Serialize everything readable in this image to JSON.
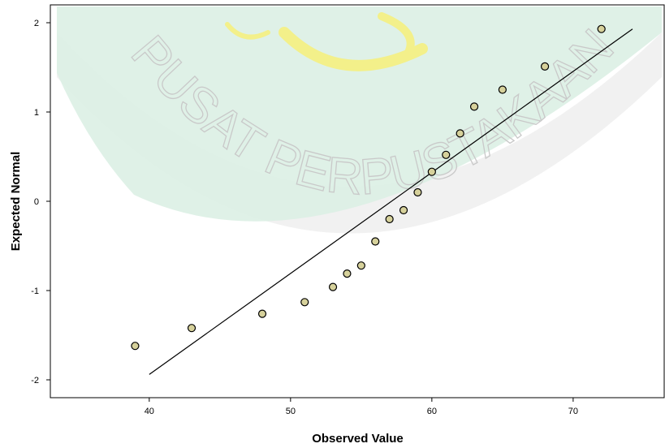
{
  "chart_data": {
    "type": "scatter",
    "title": "",
    "xlabel": "Observed Value",
    "ylabel": "Expected Normal",
    "xlim": [
      33,
      76.5
    ],
    "ylim": [
      -2.2,
      2.2
    ],
    "xticks": [
      40,
      50,
      60,
      70
    ],
    "yticks": [
      -2,
      -1,
      0,
      1,
      2
    ],
    "xtick_labels": [
      "40",
      "50",
      "60",
      "70"
    ],
    "ytick_labels": [
      "-2",
      "-1",
      "0",
      "1",
      "2"
    ],
    "grid": false,
    "points": [
      {
        "x": 39,
        "y": -1.62
      },
      {
        "x": 43,
        "y": -1.42
      },
      {
        "x": 48,
        "y": -1.26
      },
      {
        "x": 51,
        "y": -1.13
      },
      {
        "x": 53,
        "y": -0.96
      },
      {
        "x": 54,
        "y": -0.81
      },
      {
        "x": 55,
        "y": -0.72
      },
      {
        "x": 56,
        "y": -0.45
      },
      {
        "x": 57,
        "y": -0.2
      },
      {
        "x": 58,
        "y": -0.1
      },
      {
        "x": 59,
        "y": 0.1
      },
      {
        "x": 60,
        "y": 0.33
      },
      {
        "x": 61,
        "y": 0.52
      },
      {
        "x": 62,
        "y": 0.76
      },
      {
        "x": 63,
        "y": 1.06
      },
      {
        "x": 65,
        "y": 1.25
      },
      {
        "x": 68,
        "y": 1.51
      },
      {
        "x": 72,
        "y": 1.93
      }
    ],
    "reference_line": {
      "x": [
        40,
        74.2
      ],
      "y": [
        -1.94,
        1.93
      ]
    },
    "colors": {
      "point_fill": "#d6d19b",
      "point_stroke": "#000000",
      "line": "#000000",
      "plot_background": "#e6f3ee"
    }
  },
  "watermark": {
    "text": "PUSAT PERPUSTAKAAN",
    "colors": {
      "band": "#d8ecdf",
      "ring": "#e3e3e3",
      "text": "#c9c9c9",
      "logo": "#f2f07c"
    }
  }
}
